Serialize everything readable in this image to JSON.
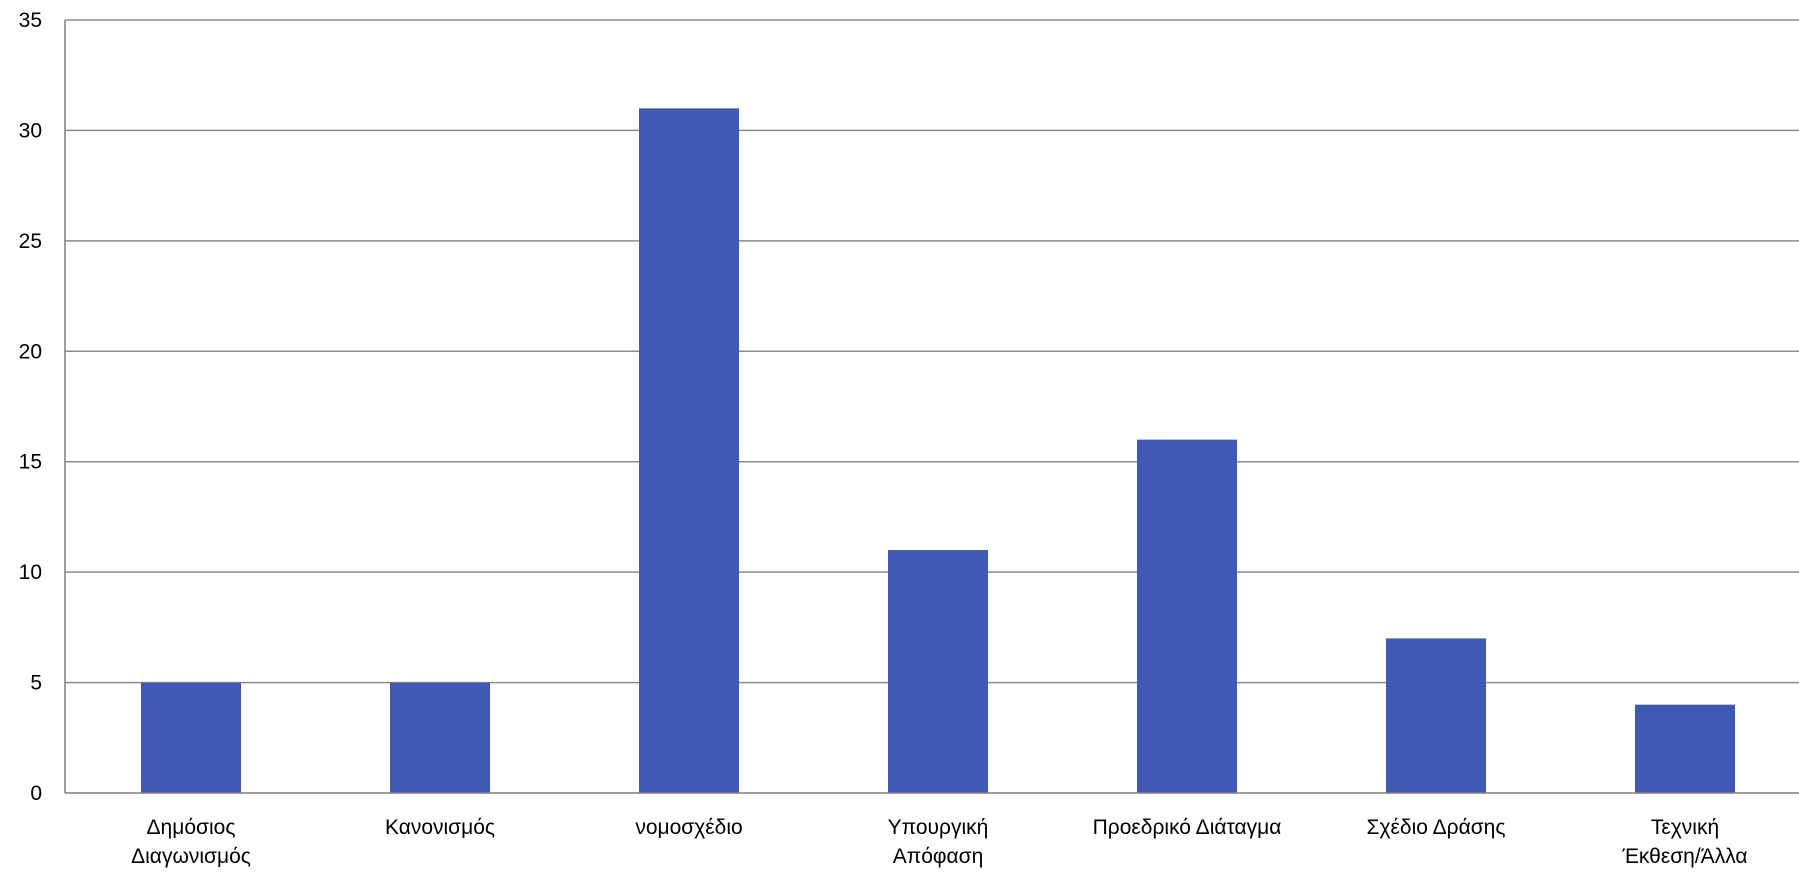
{
  "chart_data": {
    "type": "bar",
    "categories": [
      [
        "Δημόσιος",
        "Διαγωνισμός"
      ],
      [
        "Κανονισμός"
      ],
      [
        "νομοσχέδιο"
      ],
      [
        "Υπουργική",
        "Απόφαση"
      ],
      [
        "Προεδρικό Διάταγμα"
      ],
      [
        "Σχέδιο Δράσης"
      ],
      [
        "Τεχνική",
        "Έκθεση/Άλλα"
      ]
    ],
    "values": [
      5,
      5,
      31,
      11,
      16,
      7,
      4
    ],
    "title": "",
    "xlabel": "",
    "ylabel": "",
    "ylim": [
      0,
      35
    ],
    "yticks": [
      0,
      5,
      10,
      15,
      20,
      25,
      30,
      35
    ],
    "grid": true,
    "legend": "none",
    "colors": {
      "bar": "#3F5AB4",
      "grid": "#8C8C8C",
      "axis": "#7F7F7F"
    }
  }
}
